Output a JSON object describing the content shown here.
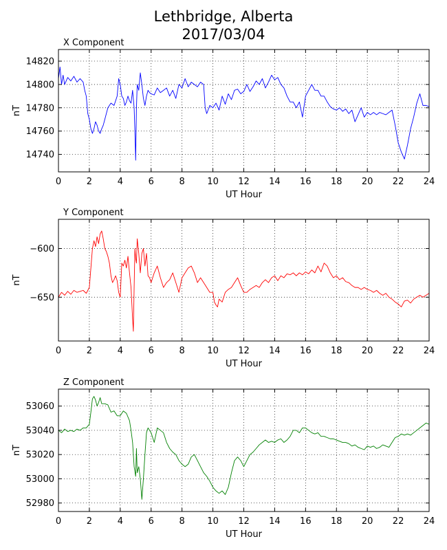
{
  "figure": {
    "title_line1": "Lethbridge, Alberta",
    "title_line2": "2017/03/04"
  },
  "chart_data": [
    {
      "type": "line",
      "title": "X Component",
      "xlabel": "UT Hour",
      "ylabel": "nT",
      "xlim": [
        0,
        24
      ],
      "ylim": [
        14725,
        14830
      ],
      "xticks": [
        0,
        2,
        4,
        6,
        8,
        10,
        12,
        14,
        16,
        18,
        20,
        22,
        24
      ],
      "yticks": [
        14740,
        14760,
        14780,
        14800,
        14820
      ],
      "grid": true,
      "color": "#0000ff",
      "series": [
        {
          "x": [
            0,
            0.1,
            0.2,
            0.3,
            0.4,
            0.6,
            0.8,
            1.0,
            1.2,
            1.4,
            1.6,
            1.7,
            1.8,
            1.9,
            2.0,
            2.1,
            2.2,
            2.3,
            2.4,
            2.5,
            2.6,
            2.7,
            2.8,
            2.9,
            3.0,
            3.1,
            3.2,
            3.4,
            3.6,
            3.8,
            3.9,
            4.0,
            4.1,
            4.2,
            4.3,
            4.4,
            4.5,
            4.6,
            4.7,
            4.8,
            4.9,
            4.95,
            5.0,
            5.05,
            5.1,
            5.2,
            5.3,
            5.4,
            5.5,
            5.6,
            5.7,
            5.8,
            5.9,
            6.0,
            6.2,
            6.4,
            6.6,
            6.8,
            7.0,
            7.2,
            7.4,
            7.6,
            7.8,
            8.0,
            8.2,
            8.4,
            8.6,
            8.8,
            9.0,
            9.2,
            9.4,
            9.5,
            9.6,
            9.8,
            10.0,
            10.2,
            10.4,
            10.6,
            10.8,
            11.0,
            11.2,
            11.4,
            11.6,
            11.8,
            12.0,
            12.2,
            12.4,
            12.6,
            12.8,
            13.0,
            13.2,
            13.4,
            13.6,
            13.8,
            14.0,
            14.2,
            14.4,
            14.6,
            14.8,
            15.0,
            15.2,
            15.4,
            15.6,
            15.8,
            16.0,
            16.2,
            16.4,
            16.6,
            16.8,
            17.0,
            17.2,
            17.4,
            17.6,
            17.8,
            18.0,
            18.2,
            18.4,
            18.6,
            18.8,
            19.0,
            19.2,
            19.4,
            19.6,
            19.8,
            20.0,
            20.2,
            20.4,
            20.6,
            20.8,
            21.0,
            21.2,
            21.4,
            21.6,
            21.8,
            22.0,
            22.2,
            22.4,
            22.6,
            22.8,
            23.0,
            23.2,
            23.4,
            23.6,
            23.8,
            24.0
          ],
          "values": [
            14805,
            14815,
            14800,
            14808,
            14800,
            14806,
            14803,
            14807,
            14802,
            14805,
            14802,
            14795,
            14790,
            14775,
            14770,
            14762,
            14758,
            14762,
            14768,
            14765,
            14760,
            14758,
            14762,
            14765,
            14770,
            14775,
            14780,
            14784,
            14782,
            14790,
            14805,
            14800,
            14790,
            14788,
            14782,
            14785,
            14790,
            14786,
            14784,
            14795,
            14780,
            14760,
            14735,
            14780,
            14800,
            14795,
            14810,
            14800,
            14788,
            14782,
            14790,
            14795,
            14793,
            14792,
            14791,
            14797,
            14793,
            14795,
            14797,
            14790,
            14795,
            14788,
            14800,
            14797,
            14805,
            14798,
            14802,
            14800,
            14798,
            14802,
            14800,
            14780,
            14775,
            14782,
            14780,
            14784,
            14778,
            14790,
            14783,
            14792,
            14787,
            14795,
            14796,
            14792,
            14794,
            14800,
            14794,
            14798,
            14803,
            14800,
            14805,
            14797,
            14802,
            14808,
            14804,
            14806,
            14800,
            14797,
            14790,
            14785,
            14785,
            14780,
            14785,
            14772,
            14790,
            14795,
            14800,
            14795,
            14795,
            14790,
            14790,
            14785,
            14781,
            14779,
            14778,
            14780,
            14777,
            14779,
            14775,
            14778,
            14768,
            14774,
            14780,
            14772,
            14776,
            14774,
            14776,
            14774,
            14776,
            14775,
            14774,
            14776,
            14778,
            14765,
            14750,
            14742,
            14736,
            14748,
            14762,
            14772,
            14784,
            14792,
            14782,
            14782,
            14781
          ]
        }
      ]
    },
    {
      "type": "line",
      "title": "Y Component",
      "xlabel": "UT Hour",
      "ylabel": "nT",
      "xlim": [
        0,
        24
      ],
      "ylim": [
        -695,
        -570
      ],
      "xticks": [
        0,
        2,
        4,
        6,
        8,
        10,
        12,
        14,
        16,
        18,
        20,
        22,
        24
      ],
      "yticks": [
        -600,
        -650
      ],
      "grid": true,
      "color": "#ff0000",
      "series": [
        {
          "x": [
            0,
            0.2,
            0.4,
            0.6,
            0.8,
            1.0,
            1.2,
            1.4,
            1.6,
            1.8,
            2.0,
            2.1,
            2.2,
            2.3,
            2.4,
            2.5,
            2.6,
            2.7,
            2.8,
            2.9,
            3.0,
            3.1,
            3.2,
            3.3,
            3.4,
            3.5,
            3.6,
            3.7,
            3.8,
            3.9,
            4.0,
            4.1,
            4.2,
            4.3,
            4.4,
            4.5,
            4.6,
            4.7,
            4.8,
            4.85,
            4.9,
            4.95,
            5.0,
            5.05,
            5.1,
            5.2,
            5.3,
            5.4,
            5.5,
            5.6,
            5.7,
            5.8,
            5.9,
            6.0,
            6.2,
            6.4,
            6.6,
            6.8,
            7.0,
            7.2,
            7.4,
            7.6,
            7.8,
            8.0,
            8.2,
            8.4,
            8.6,
            8.8,
            9.0,
            9.2,
            9.4,
            9.6,
            9.8,
            10.0,
            10.1,
            10.2,
            10.3,
            10.4,
            10.6,
            10.8,
            11.0,
            11.2,
            11.4,
            11.6,
            11.8,
            12.0,
            12.2,
            12.4,
            12.6,
            12.8,
            13.0,
            13.2,
            13.4,
            13.6,
            13.8,
            14.0,
            14.2,
            14.4,
            14.6,
            14.8,
            15.0,
            15.2,
            15.4,
            15.6,
            15.8,
            16.0,
            16.2,
            16.4,
            16.6,
            16.8,
            17.0,
            17.2,
            17.4,
            17.6,
            17.8,
            18.0,
            18.2,
            18.4,
            18.6,
            18.8,
            19.0,
            19.2,
            19.4,
            19.6,
            19.8,
            20.0,
            20.2,
            20.4,
            20.6,
            20.8,
            21.0,
            21.2,
            21.4,
            21.6,
            21.8,
            22.0,
            22.2,
            22.4,
            22.6,
            22.8,
            23.0,
            23.2,
            23.4,
            23.6,
            23.8,
            24.0
          ],
          "values": [
            -650,
            -645,
            -648,
            -644,
            -647,
            -643,
            -645,
            -644,
            -643,
            -646,
            -640,
            -620,
            -600,
            -592,
            -598,
            -588,
            -595,
            -585,
            -582,
            -590,
            -600,
            -603,
            -608,
            -615,
            -628,
            -635,
            -632,
            -628,
            -633,
            -645,
            -650,
            -615,
            -618,
            -612,
            -620,
            -608,
            -625,
            -640,
            -672,
            -685,
            -640,
            -600,
            -610,
            -615,
            -590,
            -605,
            -625,
            -605,
            -600,
            -618,
            -605,
            -628,
            -630,
            -635,
            -625,
            -618,
            -630,
            -640,
            -635,
            -632,
            -625,
            -635,
            -645,
            -630,
            -625,
            -620,
            -618,
            -625,
            -635,
            -630,
            -635,
            -640,
            -645,
            -645,
            -655,
            -658,
            -660,
            -652,
            -655,
            -645,
            -642,
            -640,
            -635,
            -630,
            -638,
            -645,
            -645,
            -642,
            -640,
            -638,
            -640,
            -635,
            -632,
            -635,
            -630,
            -628,
            -633,
            -628,
            -630,
            -626,
            -627,
            -625,
            -628,
            -625,
            -627,
            -624,
            -626,
            -622,
            -625,
            -618,
            -624,
            -615,
            -618,
            -625,
            -630,
            -628,
            -632,
            -630,
            -634,
            -635,
            -638,
            -640,
            -640,
            -642,
            -640,
            -642,
            -643,
            -645,
            -643,
            -646,
            -648,
            -646,
            -650,
            -652,
            -655,
            -657,
            -660,
            -654,
            -653,
            -656,
            -652,
            -650,
            -648,
            -650,
            -648,
            -646
          ]
        }
      ]
    },
    {
      "type": "line",
      "title": "Z Component",
      "xlabel": "UT Hour",
      "ylabel": "nT",
      "xlim": [
        0,
        24
      ],
      "ylim": [
        52973,
        53074
      ],
      "xticks": [
        0,
        2,
        4,
        6,
        8,
        10,
        12,
        14,
        16,
        18,
        20,
        22,
        24
      ],
      "yticks": [
        52980,
        53000,
        53020,
        53040,
        53060
      ],
      "grid": true,
      "color": "#008000",
      "series": [
        {
          "x": [
            0,
            0.2,
            0.4,
            0.6,
            0.8,
            1.0,
            1.2,
            1.4,
            1.6,
            1.8,
            2.0,
            2.1,
            2.2,
            2.3,
            2.4,
            2.5,
            2.6,
            2.7,
            2.8,
            3.0,
            3.2,
            3.4,
            3.6,
            3.8,
            4.0,
            4.2,
            4.4,
            4.6,
            4.7,
            4.8,
            4.9,
            5.0,
            5.05,
            5.1,
            5.2,
            5.3,
            5.4,
            5.5,
            5.6,
            5.7,
            5.8,
            6.0,
            6.2,
            6.4,
            6.6,
            6.8,
            7.0,
            7.2,
            7.4,
            7.6,
            7.8,
            8.0,
            8.2,
            8.4,
            8.6,
            8.8,
            9.0,
            9.2,
            9.4,
            9.6,
            9.8,
            10.0,
            10.2,
            10.4,
            10.6,
            10.8,
            11.0,
            11.2,
            11.4,
            11.6,
            11.8,
            12.0,
            12.2,
            12.4,
            12.6,
            12.8,
            13.0,
            13.2,
            13.4,
            13.6,
            13.8,
            14.0,
            14.2,
            14.4,
            14.6,
            14.8,
            15.0,
            15.2,
            15.4,
            15.6,
            15.8,
            16.0,
            16.2,
            16.4,
            16.6,
            16.8,
            17.0,
            17.2,
            17.4,
            17.6,
            17.8,
            18.0,
            18.2,
            18.4,
            18.6,
            18.8,
            19.0,
            19.2,
            19.4,
            19.6,
            19.8,
            20.0,
            20.2,
            20.4,
            20.6,
            20.8,
            21.0,
            21.2,
            21.4,
            21.6,
            21.8,
            22.0,
            22.2,
            22.4,
            22.6,
            22.8,
            23.0,
            23.2,
            23.4,
            23.6,
            23.8,
            24.0
          ],
          "values": [
            53040,
            53038,
            53041,
            53039,
            53040,
            53039,
            53041,
            53040,
            53042,
            53042,
            53045,
            53055,
            53066,
            53068,
            53065,
            53060,
            53063,
            53067,
            53062,
            53062,
            53061,
            53055,
            53056,
            53052,
            53052,
            53056,
            53054,
            53048,
            53040,
            53030,
            53010,
            53002,
            53025,
            53005,
            53010,
            53000,
            52983,
            53000,
            53020,
            53038,
            53042,
            53038,
            53030,
            53042,
            53040,
            53038,
            53030,
            53025,
            53022,
            53020,
            53015,
            53012,
            53010,
            53012,
            53018,
            53020,
            53015,
            53010,
            53005,
            53002,
            52998,
            52993,
            52990,
            52988,
            52990,
            52987,
            52993,
            53005,
            53015,
            53018,
            53015,
            53010,
            53015,
            53020,
            53022,
            53025,
            53028,
            53030,
            53032,
            53030,
            53031,
            53030,
            53032,
            53033,
            53030,
            53032,
            53035,
            53040,
            53040,
            53038,
            53042,
            53042,
            53040,
            53038,
            53037,
            53038,
            53035,
            53035,
            53034,
            53033,
            53033,
            53032,
            53031,
            53030,
            53030,
            53029,
            53027,
            53028,
            53026,
            53025,
            53024,
            53027,
            53026,
            53027,
            53025,
            53026,
            53028,
            53027,
            53026,
            53030,
            53034,
            53035,
            53037,
            53036,
            53037,
            53036,
            53038,
            53040,
            53042,
            53044,
            53046,
            53045
          ]
        }
      ]
    }
  ]
}
